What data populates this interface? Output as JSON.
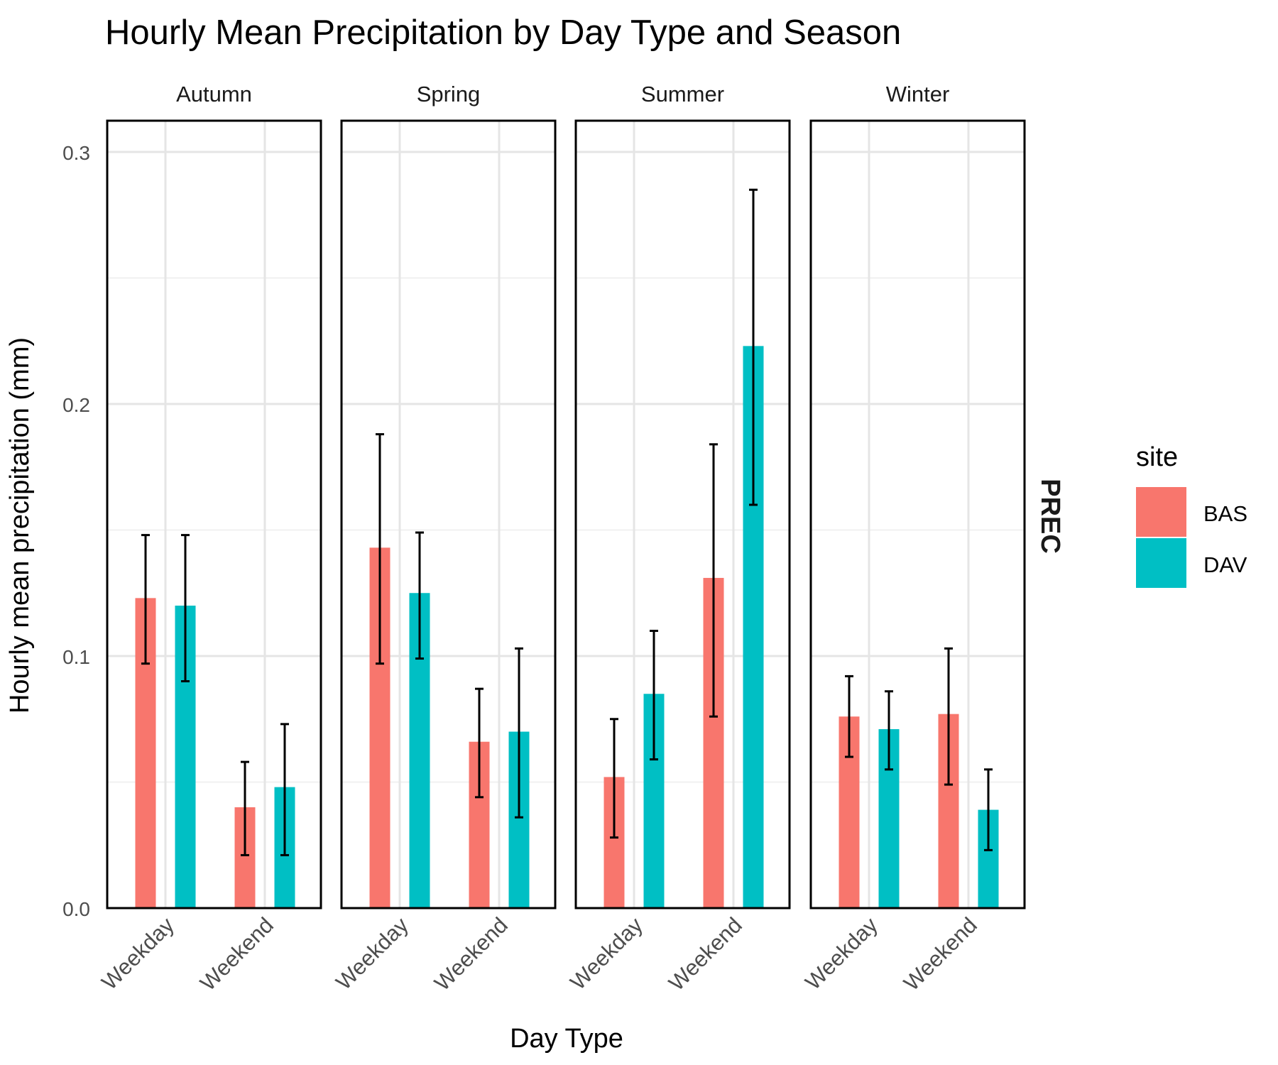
{
  "chart_data": {
    "type": "bar",
    "title": "Hourly Mean Precipitation by Day Type and Season",
    "xlabel": "Day Type",
    "ylabel": "Hourly mean precipitation (mm)",
    "ylim": [
      0,
      0.3
    ],
    "yticks": [
      "0.0",
      "0.1",
      "0.2",
      "0.3"
    ],
    "y_tick_values": [
      0,
      0.1,
      0.2,
      0.3
    ],
    "categories": [
      "Weekday",
      "Weekend"
    ],
    "row_strip": "PREC",
    "legend": {
      "title": "site",
      "position": "right",
      "items": [
        {
          "name": "BAS",
          "color": "#F8766D"
        },
        {
          "name": "DAV",
          "color": "#00BFC4"
        }
      ]
    },
    "grid": true,
    "error_bars": true,
    "panels": [
      {
        "facet": "Autumn",
        "series": [
          {
            "name": "BAS",
            "values": [
              0.123,
              0.04
            ],
            "lower": [
              0.097,
              0.021
            ],
            "upper": [
              0.148,
              0.058
            ]
          },
          {
            "name": "DAV",
            "values": [
              0.12,
              0.048
            ],
            "lower": [
              0.09,
              0.021
            ],
            "upper": [
              0.148,
              0.073
            ]
          }
        ]
      },
      {
        "facet": "Spring",
        "series": [
          {
            "name": "BAS",
            "values": [
              0.143,
              0.066
            ],
            "lower": [
              0.097,
              0.044
            ],
            "upper": [
              0.188,
              0.087
            ]
          },
          {
            "name": "DAV",
            "values": [
              0.125,
              0.07
            ],
            "lower": [
              0.099,
              0.036
            ],
            "upper": [
              0.149,
              0.103
            ]
          }
        ]
      },
      {
        "facet": "Summer",
        "series": [
          {
            "name": "BAS",
            "values": [
              0.052,
              0.131
            ],
            "lower": [
              0.028,
              0.076
            ],
            "upper": [
              0.075,
              0.184
            ]
          },
          {
            "name": "DAV",
            "values": [
              0.085,
              0.223
            ],
            "lower": [
              0.059,
              0.16
            ],
            "upper": [
              0.11,
              0.285
            ]
          }
        ]
      },
      {
        "facet": "Winter",
        "series": [
          {
            "name": "BAS",
            "values": [
              0.076,
              0.077
            ],
            "lower": [
              0.06,
              0.049
            ],
            "upper": [
              0.092,
              0.103
            ]
          },
          {
            "name": "DAV",
            "values": [
              0.071,
              0.039
            ],
            "lower": [
              0.055,
              0.023
            ],
            "upper": [
              0.086,
              0.055
            ]
          }
        ]
      }
    ]
  }
}
